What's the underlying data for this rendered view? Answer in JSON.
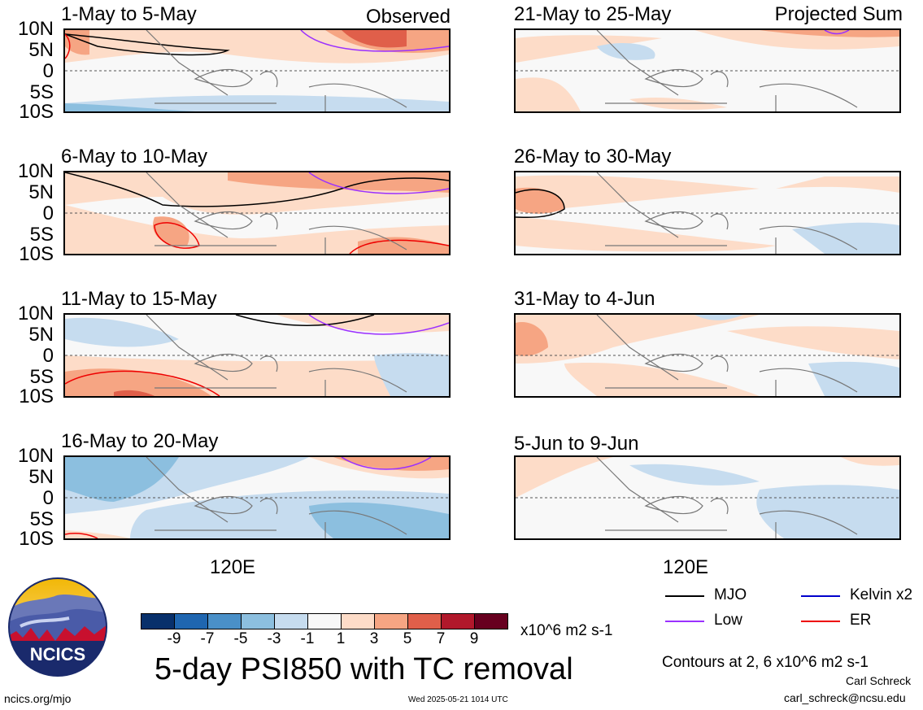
{
  "panels_left": [
    {
      "title": "1-May to 5-May",
      "tag": "Observed"
    },
    {
      "title": "6-May to 10-May",
      "tag": ""
    },
    {
      "title": "11-May to 15-May",
      "tag": ""
    },
    {
      "title": "16-May to 20-May",
      "tag": ""
    }
  ],
  "panels_right": [
    {
      "title": "21-May to 25-May",
      "tag": "Projected Sum"
    },
    {
      "title": "26-May to 30-May",
      "tag": ""
    },
    {
      "title": "31-May to 4-Jun",
      "tag": ""
    },
    {
      "title": "5-Jun to 9-Jun",
      "tag": ""
    }
  ],
  "lat_labels": [
    "10N",
    "5N",
    "0",
    "5S",
    "10S"
  ],
  "lon_label": "120E",
  "legend": {
    "mjo": "MJO",
    "mjo_color": "#000000",
    "low": "Low",
    "low_color": "#9b30ff",
    "kelvin": "Kelvin x2",
    "kelvin_color": "#0000cc",
    "er": "ER",
    "er_color": "#ee0000"
  },
  "colorbar": {
    "colors": [
      "#08306b",
      "#1f66b0",
      "#4a90c8",
      "#8cbfdf",
      "#c6dcef",
      "#f8f8f8",
      "#fddcc8",
      "#f6a583",
      "#e05f4a",
      "#b1182b",
      "#67001f"
    ],
    "labels": [
      "-9",
      "-7",
      "-5",
      "-3",
      "-1",
      "1",
      "3",
      "5",
      "7",
      "9"
    ],
    "units": "x10^6 m2 s-1"
  },
  "main_title": "5-day PSI850 with TC removal",
  "contours_note": "Contours at 2, 6 x10^6 m2 s-1",
  "author": "Carl Schreck",
  "email": "carl_schreck@ncsu.edu",
  "site": "ncics.org/mjo",
  "timestamp": "Wed 2025-05-21 1014 UTC",
  "logo_text": "NCICS"
}
